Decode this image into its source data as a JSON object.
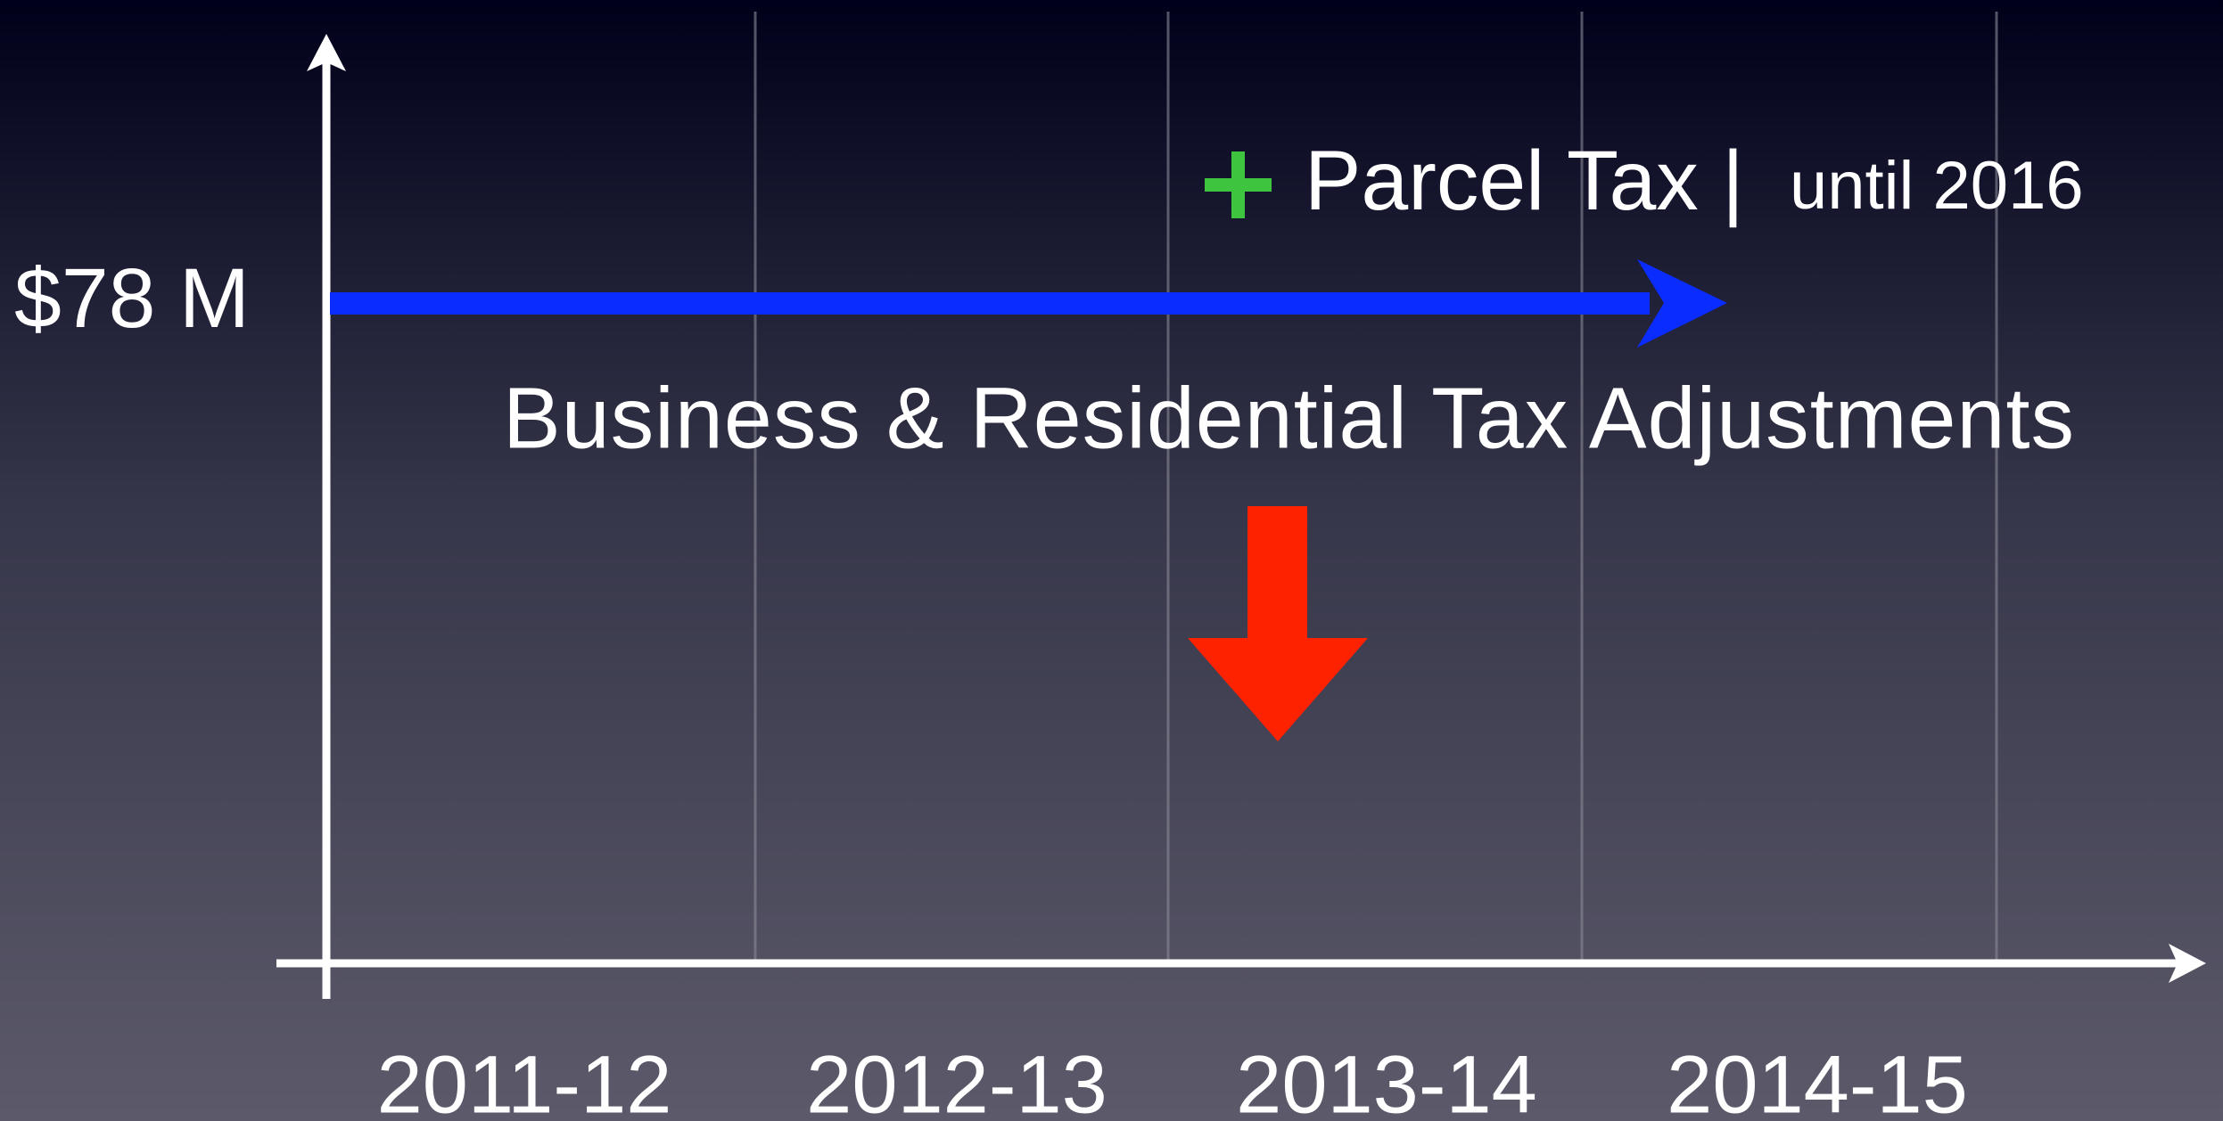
{
  "y_label": "$78 M",
  "parcel_tax": {
    "label": "Parcel Tax |",
    "note": "until 2016"
  },
  "adjustments": "Business & Residential Tax Adjustments",
  "categories": [
    "2011-12",
    "2012-13",
    "2013-14",
    "2014-15"
  ]
}
